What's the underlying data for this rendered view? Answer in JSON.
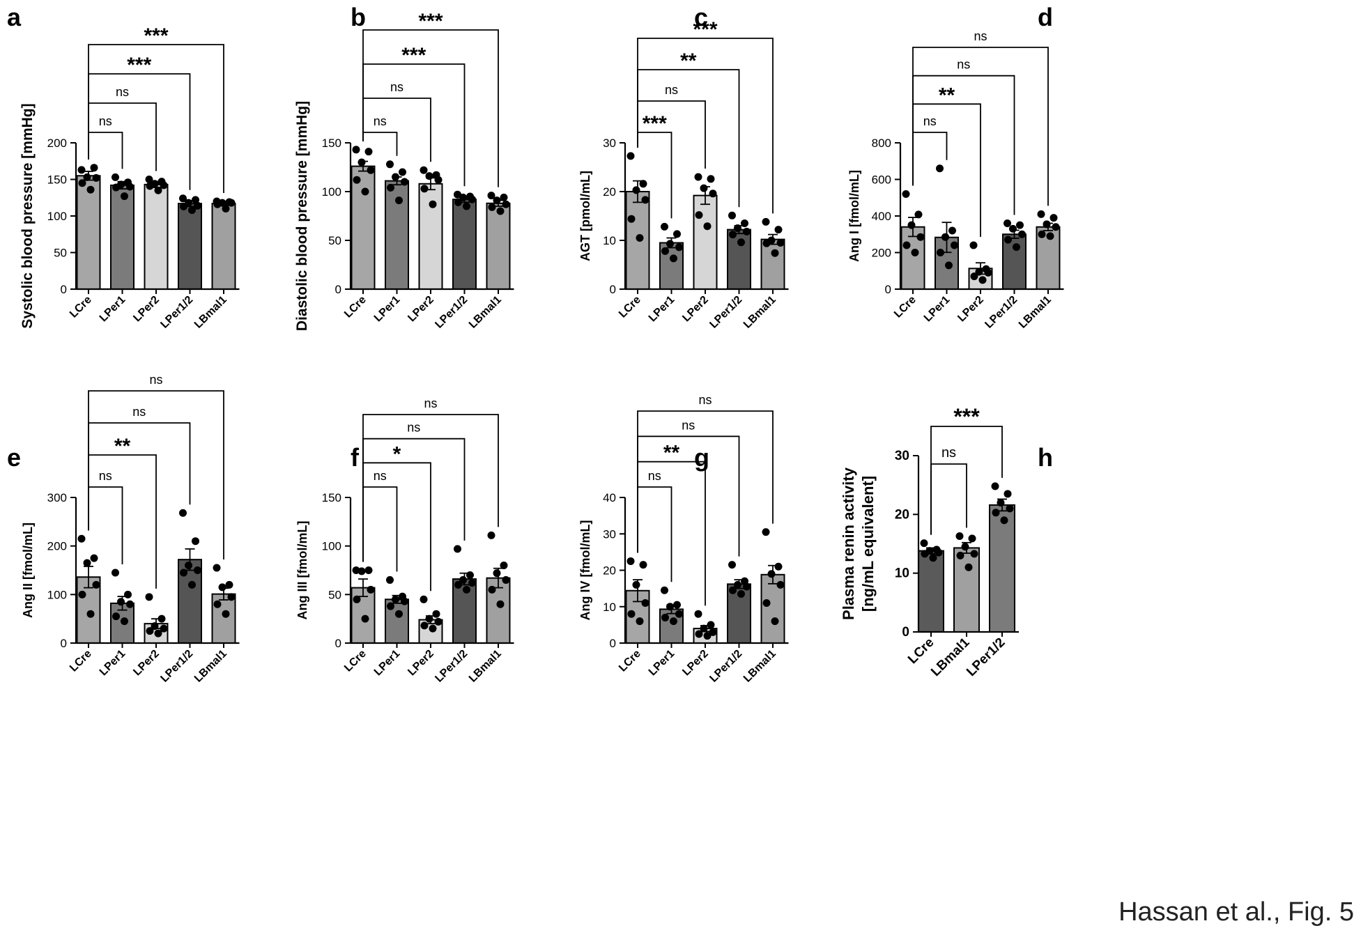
{
  "caption": "Hassan et al., Fig. 5",
  "chart_data": [
    {
      "panel": "a",
      "type": "bar",
      "ylabel": "Systolic blood pressure [mmHg]",
      "ylim": [
        0,
        200
      ],
      "yticks": [
        "0",
        "50",
        "100",
        "150",
        "200"
      ],
      "ytick_values": [
        0,
        50,
        100,
        150,
        200
      ],
      "categories": [
        "LCre",
        "LPer1",
        "LPer2",
        "LPer1/2",
        "LBmal1"
      ],
      "values": [
        155,
        142,
        143,
        117,
        117
      ],
      "errors": [
        6,
        5,
        4,
        4,
        2
      ],
      "fills": [
        "#a6a6a6",
        "#7b7b7b",
        "#d6d6d6",
        "#555555",
        "#a0a0a0"
      ],
      "points": [
        [
          163,
          166,
          153,
          152,
          145,
          136
        ],
        [
          153,
          146,
          143,
          140,
          139,
          127
        ],
        [
          150,
          147,
          144,
          142,
          141,
          135
        ],
        [
          124,
          122,
          118,
          114,
          113,
          108
        ],
        [
          120,
          119,
          118,
          118,
          116,
          110
        ]
      ],
      "comparisons": [
        {
          "from": 0,
          "to": 1,
          "label": "ns"
        },
        {
          "from": 0,
          "to": 2,
          "label": "ns"
        },
        {
          "from": 0,
          "to": 3,
          "label": "***"
        },
        {
          "from": 0,
          "to": 4,
          "label": "***"
        }
      ]
    },
    {
      "panel": "b",
      "type": "bar",
      "ylabel": "Diastolic blood pressure [mmHg]",
      "ylim": [
        0,
        150
      ],
      "yticks": [
        "0",
        "50",
        "100",
        "150"
      ],
      "ytick_values": [
        0,
        50,
        100,
        150
      ],
      "categories": [
        "LCre",
        "LPer1",
        "LPer2",
        "LPer1/2",
        "LBmal1"
      ],
      "values": [
        126,
        111,
        108,
        92,
        88
      ],
      "errors": [
        5,
        4,
        6,
        3,
        3
      ],
      "fills": [
        "#a6a6a6",
        "#7b7b7b",
        "#d6d6d6",
        "#555555",
        "#a0a0a0"
      ],
      "points": [
        [
          143,
          141,
          130,
          122,
          112,
          100
        ],
        [
          128,
          120,
          115,
          110,
          104,
          91
        ],
        [
          122,
          117,
          116,
          112,
          103,
          87
        ],
        [
          97,
          95,
          94,
          92,
          89,
          85
        ],
        [
          96,
          94,
          91,
          87,
          84,
          80
        ]
      ],
      "comparisons": [
        {
          "from": 0,
          "to": 1,
          "label": "ns"
        },
        {
          "from": 0,
          "to": 2,
          "label": "ns"
        },
        {
          "from": 0,
          "to": 3,
          "label": "***"
        },
        {
          "from": 0,
          "to": 4,
          "label": "***"
        }
      ]
    },
    {
      "panel": "c",
      "type": "bar",
      "ylabel": "AGT [pmol/mL]",
      "ylim": [
        0,
        30
      ],
      "yticks": [
        "0",
        "10",
        "20",
        "30"
      ],
      "ytick_values": [
        0,
        10,
        20,
        30
      ],
      "categories": [
        "LCre",
        "LPer1",
        "LPer2",
        "LPer1/2",
        "LBmal1"
      ],
      "values": [
        20,
        9.5,
        19.2,
        12.2,
        10.2
      ],
      "errors": [
        2.2,
        1.0,
        1.8,
        0.8,
        1.0
      ],
      "fills": [
        "#a6a6a6",
        "#7b7b7b",
        "#d6d6d6",
        "#555555",
        "#a0a0a0"
      ],
      "points": [
        [
          27.3,
          21.6,
          20.3,
          18.3,
          14.4,
          10.5
        ],
        [
          12.8,
          11.3,
          9.3,
          8.6,
          7.8,
          6.3
        ],
        [
          23.0,
          22.6,
          20.7,
          19.6,
          15.2,
          12.9
        ],
        [
          15.1,
          13.5,
          12.5,
          11.8,
          11.2,
          9.6
        ],
        [
          13.8,
          12.2,
          10.0,
          9.5,
          9.4,
          7.4
        ]
      ],
      "comparisons": [
        {
          "from": 0,
          "to": 1,
          "label": "***"
        },
        {
          "from": 0,
          "to": 2,
          "label": "ns"
        },
        {
          "from": 0,
          "to": 3,
          "label": "**"
        },
        {
          "from": 0,
          "to": 4,
          "label": "***"
        }
      ]
    },
    {
      "panel": "d",
      "type": "bar",
      "ylabel": "Ang I [fmol/mL]",
      "ylim": [
        0,
        800
      ],
      "yticks": [
        "0",
        "200",
        "400",
        "600",
        "800"
      ],
      "ytick_values": [
        0,
        200,
        400,
        600,
        800
      ],
      "categories": [
        "LCre",
        "LPer1",
        "LPer2",
        "LPer1/2",
        "LBmal1"
      ],
      "values": [
        340,
        283,
        113,
        300,
        340
      ],
      "errors": [
        52,
        82,
        31,
        22,
        20
      ],
      "fills": [
        "#a6a6a6",
        "#7b7b7b",
        "#d6d6d6",
        "#555555",
        "#a0a0a0"
      ],
      "points": [
        [
          520,
          408,
          350,
          285,
          240,
          200
        ],
        [
          660,
          320,
          285,
          240,
          200,
          130
        ],
        [
          240,
          110,
          95,
          90,
          70,
          50
        ],
        [
          360,
          350,
          330,
          300,
          270,
          230
        ],
        [
          410,
          390,
          355,
          340,
          300,
          290
        ]
      ],
      "comparisons": [
        {
          "from": 0,
          "to": 1,
          "label": "ns"
        },
        {
          "from": 0,
          "to": 2,
          "label": "**"
        },
        {
          "from": 0,
          "to": 3,
          "label": "ns"
        },
        {
          "from": 0,
          "to": 4,
          "label": "ns"
        }
      ]
    },
    {
      "panel": "e",
      "type": "bar",
      "ylabel": "Ang II [fmol/mL]",
      "ylim": [
        0,
        300
      ],
      "yticks": [
        "0",
        "100",
        "200",
        "300"
      ],
      "ytick_values": [
        0,
        100,
        200,
        300
      ],
      "categories": [
        "LCre",
        "LPer1",
        "LPer2",
        "LPer1/2",
        "LBmal1"
      ],
      "values": [
        136,
        82,
        40,
        172,
        101
      ],
      "errors": [
        22,
        14,
        10,
        22,
        12
      ],
      "fills": [
        "#a6a6a6",
        "#7b7b7b",
        "#d6d6d6",
        "#555555",
        "#a0a0a0"
      ],
      "points": [
        [
          215,
          175,
          165,
          120,
          100,
          60
        ],
        [
          145,
          100,
          85,
          80,
          55,
          45
        ],
        [
          95,
          50,
          35,
          30,
          25,
          20
        ],
        [
          268,
          210,
          160,
          150,
          145,
          120
        ],
        [
          155,
          120,
          115,
          95,
          80,
          60
        ]
      ],
      "comparisons": [
        {
          "from": 0,
          "to": 1,
          "label": "ns"
        },
        {
          "from": 0,
          "to": 2,
          "label": "**"
        },
        {
          "from": 0,
          "to": 3,
          "label": "ns"
        },
        {
          "from": 0,
          "to": 4,
          "label": "ns"
        }
      ]
    },
    {
      "panel": "f",
      "type": "bar",
      "ylabel": "Ang III [fmol/mL]",
      "ylim": [
        0,
        150
      ],
      "yticks": [
        "0",
        "50",
        "100",
        "150"
      ],
      "ytick_values": [
        0,
        50,
        100,
        150
      ],
      "categories": [
        "LCre",
        "LPer1",
        "LPer2",
        "LPer1/2",
        "LBmal1"
      ],
      "values": [
        57,
        45,
        24,
        66,
        67
      ],
      "errors": [
        9,
        4,
        4,
        6,
        10
      ],
      "fills": [
        "#a6a6a6",
        "#7b7b7b",
        "#d6d6d6",
        "#555555",
        "#a0a0a0"
      ],
      "points": [
        [
          75,
          75,
          74,
          55,
          45,
          25
        ],
        [
          65,
          48,
          45,
          43,
          38,
          30
        ],
        [
          45,
          30,
          25,
          22,
          18,
          15
        ],
        [
          97,
          70,
          65,
          62,
          60,
          55
        ],
        [
          111,
          80,
          72,
          65,
          55,
          40
        ]
      ],
      "comparisons": [
        {
          "from": 0,
          "to": 1,
          "label": "ns"
        },
        {
          "from": 0,
          "to": 2,
          "label": "*"
        },
        {
          "from": 0,
          "to": 3,
          "label": "ns"
        },
        {
          "from": 0,
          "to": 4,
          "label": "ns"
        }
      ]
    },
    {
      "panel": "g",
      "type": "bar",
      "ylabel": "Ang IV [fmol/mL]",
      "ylim": [
        0,
        40
      ],
      "yticks": [
        "0",
        "10",
        "20",
        "30",
        "40"
      ],
      "ytick_values": [
        0,
        10,
        20,
        30,
        40
      ],
      "categories": [
        "LCre",
        "LPer1",
        "LPer2",
        "LPer1/2",
        "LBmal1"
      ],
      "values": [
        14.4,
        9.3,
        4.0,
        16.2,
        18.8
      ],
      "errors": [
        3.0,
        1.2,
        0.8,
        1.2,
        2.5
      ],
      "fills": [
        "#a6a6a6",
        "#7b7b7b",
        "#d6d6d6",
        "#555555",
        "#a0a0a0"
      ],
      "points": [
        [
          22.5,
          21.5,
          16.0,
          11.0,
          8.0,
          6.0
        ],
        [
          14.5,
          10.5,
          10.0,
          8.0,
          7.0,
          6.0
        ],
        [
          8.0,
          5.0,
          4.0,
          3.0,
          2.5,
          2.0
        ],
        [
          21.5,
          17.0,
          16.0,
          15.5,
          14.5,
          13.5
        ],
        [
          30.5,
          21.0,
          19.0,
          16.0,
          11.0,
          6.0
        ]
      ],
      "comparisons": [
        {
          "from": 0,
          "to": 1,
          "label": "ns"
        },
        {
          "from": 0,
          "to": 2,
          "label": "**"
        },
        {
          "from": 0,
          "to": 3,
          "label": "ns"
        },
        {
          "from": 0,
          "to": 4,
          "label": "ns"
        }
      ]
    },
    {
      "panel": "h",
      "type": "bar",
      "ylabel": "Plasma renin activity [ng/mL equivalent]",
      "ylabel_lines": [
        "Plasma renin activity",
        "[ng/mL equivalent]"
      ],
      "ylim": [
        0,
        30
      ],
      "yticks": [
        "0",
        "10",
        "20",
        "30"
      ],
      "ytick_values": [
        0,
        10,
        20,
        30
      ],
      "categories": [
        "LCre",
        "LBmal1",
        "LPer1/2"
      ],
      "values": [
        13.8,
        14.3,
        21.6
      ],
      "errors": [
        0.5,
        0.9,
        1.0
      ],
      "fills": [
        "#5a5a5a",
        "#a0a0a0",
        "#7b7b7b"
      ],
      "points": [
        [
          15.1,
          14.0,
          13.8,
          13.5,
          13.3,
          12.6
        ],
        [
          16.3,
          15.9,
          14.5,
          13.3,
          13.0,
          11.0
        ],
        [
          24.8,
          23.5,
          22.0,
          21.0,
          20.3,
          19.0
        ]
      ],
      "comparisons": [
        {
          "from": 0,
          "to": 1,
          "label": "ns"
        },
        {
          "from": 0,
          "to": 2,
          "label": "***"
        }
      ]
    }
  ]
}
